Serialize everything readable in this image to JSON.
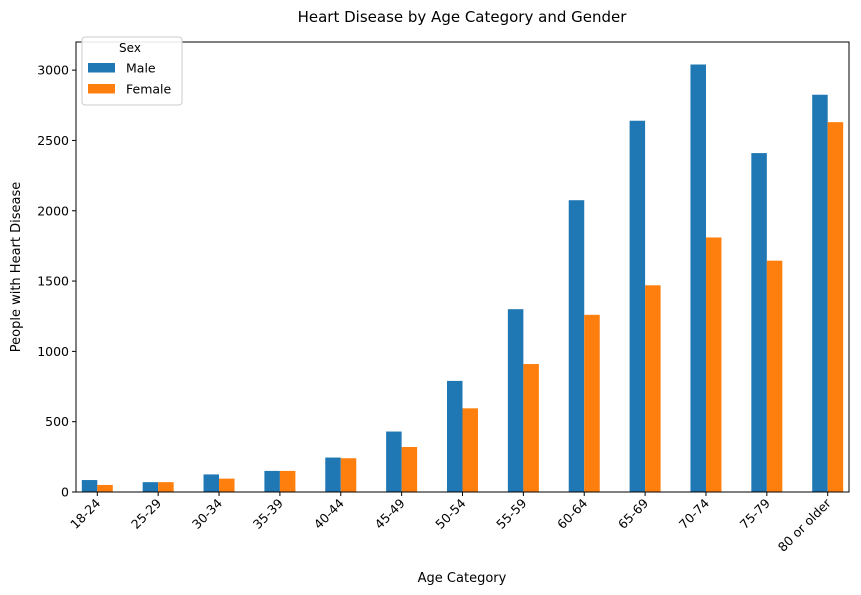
{
  "chart_data": {
    "type": "bar",
    "title": "Heart Disease by Age Category and Gender",
    "xlabel": "Age Category",
    "ylabel": "People with Heart Disease",
    "categories": [
      "18-24",
      "25-29",
      "30-34",
      "35-39",
      "40-44",
      "45-49",
      "50-54",
      "55-59",
      "60-64",
      "65-69",
      "70-74",
      "75-79",
      "80 or older"
    ],
    "series": [
      {
        "name": "Male",
        "color": "#1f77b4",
        "values": [
          85,
          70,
          125,
          150,
          245,
          430,
          790,
          1300,
          2075,
          2640,
          3040,
          2410,
          2825
        ]
      },
      {
        "name": "Female",
        "color": "#ff7f0e",
        "values": [
          50,
          70,
          95,
          150,
          240,
          320,
          595,
          910,
          1260,
          1470,
          1810,
          1645,
          2630
        ]
      }
    ],
    "ylim": [
      0,
      3200
    ],
    "yticks": [
      0,
      500,
      1000,
      1500,
      2000,
      2500,
      3000
    ],
    "legend": {
      "title": "Sex",
      "position": "top-left"
    },
    "grid": false
  }
}
